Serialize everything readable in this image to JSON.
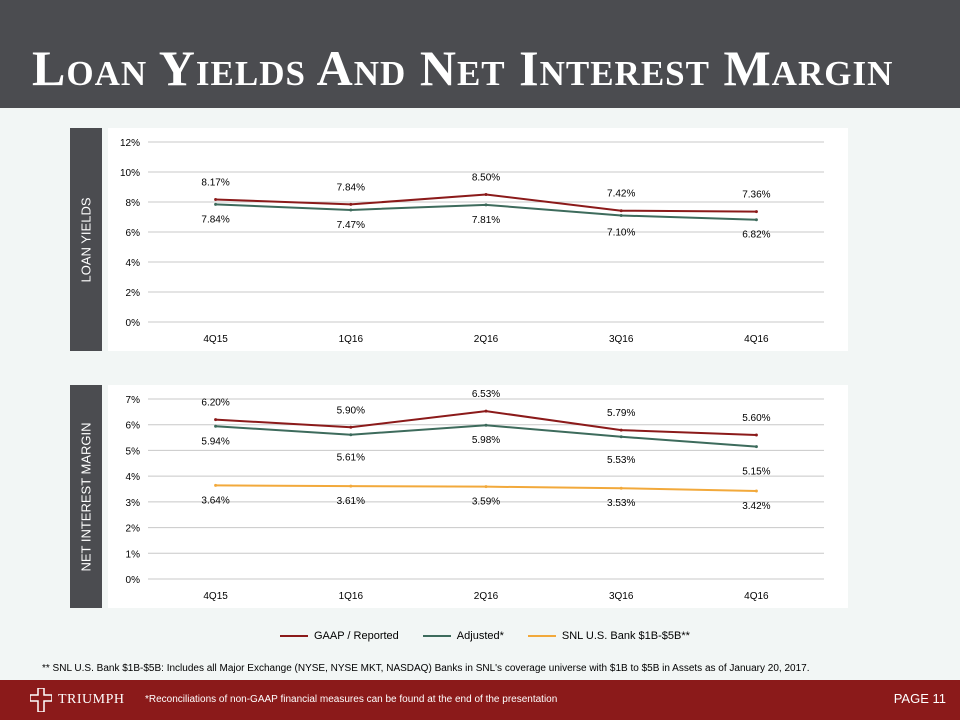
{
  "title": "Loan Yields And Net Interest Margin",
  "colors": {
    "gaap": "#8b1a1a",
    "adjusted": "#3d6b5c",
    "snl": "#f2a93b"
  },
  "sections": {
    "loan_yields_label": "LOAN YIELDS",
    "nim_label": "NET INTEREST MARGIN"
  },
  "chart_data": [
    {
      "type": "line",
      "title": "Loan Yields",
      "categories": [
        "4Q15",
        "1Q16",
        "2Q16",
        "3Q16",
        "4Q16"
      ],
      "yticks": [
        "0%",
        "2%",
        "4%",
        "6%",
        "8%",
        "10%",
        "12%"
      ],
      "ylim": [
        0,
        12
      ],
      "series": [
        {
          "name": "GAAP / Reported",
          "color": "#8b1a1a",
          "values": [
            8.17,
            7.84,
            8.5,
            7.42,
            7.36
          ],
          "labels": [
            "8.17%",
            "7.84%",
            "8.50%",
            "7.42%",
            "7.36%"
          ]
        },
        {
          "name": "Adjusted*",
          "color": "#3d6b5c",
          "values": [
            7.84,
            7.47,
            7.81,
            7.1,
            6.82
          ],
          "labels": [
            "7.84%",
            "7.47%",
            "7.81%",
            "7.10%",
            "6.82%"
          ]
        }
      ]
    },
    {
      "type": "line",
      "title": "Net Interest Margin",
      "categories": [
        "4Q15",
        "1Q16",
        "2Q16",
        "3Q16",
        "4Q16"
      ],
      "yticks": [
        "0%",
        "1%",
        "2%",
        "3%",
        "4%",
        "5%",
        "6%",
        "7%"
      ],
      "ylim": [
        0,
        7
      ],
      "series": [
        {
          "name": "GAAP / Reported",
          "color": "#8b1a1a",
          "values": [
            6.2,
            5.9,
            6.53,
            5.79,
            5.6
          ],
          "labels": [
            "6.20%",
            "5.90%",
            "6.53%",
            "5.79%",
            "5.60%"
          ]
        },
        {
          "name": "Adjusted*",
          "color": "#3d6b5c",
          "values": [
            5.94,
            5.61,
            5.98,
            5.53,
            5.15
          ],
          "labels": [
            "5.94%",
            "5.61%",
            "5.98%",
            "5.53%",
            "5.15%"
          ]
        },
        {
          "name": "SNL U.S. Bank $1B-$5B**",
          "color": "#f2a93b",
          "values": [
            3.64,
            3.61,
            3.59,
            3.53,
            3.42
          ],
          "labels": [
            "3.64%",
            "3.61%",
            "3.59%",
            "3.53%",
            "3.42%"
          ]
        }
      ]
    }
  ],
  "legend": [
    {
      "label": "GAAP / Reported",
      "color": "#8b1a1a"
    },
    {
      "label": "Adjusted*",
      "color": "#3d6b5c"
    },
    {
      "label": "SNL U.S. Bank $1B-$5B**",
      "color": "#f2a93b"
    }
  ],
  "footnote": "**  SNL U.S. Bank $1B-$5B: Includes all Major Exchange (NYSE, NYSE MKT, NASDAQ) Banks in SNL's coverage universe with $1B to $5B in Assets as of January 20, 2017.",
  "footer": {
    "logo_text": "TRIUMPH",
    "note": "*Reconciliations of non-GAAP financial measures can be found at the end of the presentation",
    "page": "PAGE 11"
  }
}
